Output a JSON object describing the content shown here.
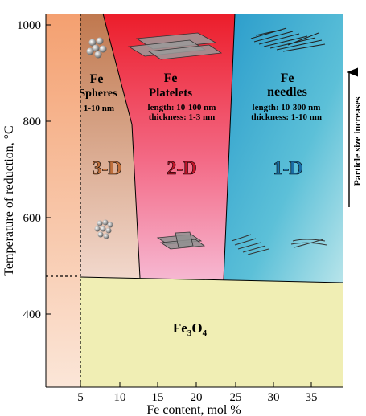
{
  "colors": {
    "sphere_region": "#c98a6a",
    "platelet_region": "#ee2a3a",
    "needle_region": "#2a9fc8",
    "fe3o4_region": "#f0eeb4",
    "left_strip": "#f5a878"
  },
  "axes": {
    "x_title": "Fe content, mol %",
    "y_title": "Temperature of reduction, °C",
    "x_ticks": [
      "5",
      "10",
      "15",
      "20",
      "25",
      "30",
      "35"
    ],
    "y_ticks": [
      "1000",
      "800",
      "600",
      "400"
    ]
  },
  "regions": {
    "spheres": {
      "line1": "Fe",
      "line2": "Spheres",
      "size": "1-10 nm",
      "dimension": "3-D"
    },
    "platelets": {
      "line1": "Fe",
      "line2": "Platelets",
      "length": "length: 10-100 nm",
      "thickness": "thickness: 1-3 nm",
      "dimension": "2-D"
    },
    "needles": {
      "line1": "Fe",
      "line2": "needles",
      "length": "length: 10-300 nm",
      "thickness": "thickness: 1-10 nm",
      "dimension": "1-D"
    },
    "oxide": {
      "base": "Fe",
      "sub3": "3",
      "o": "O",
      "sub4": "4"
    }
  },
  "arrow_label": "Particle size increases"
}
